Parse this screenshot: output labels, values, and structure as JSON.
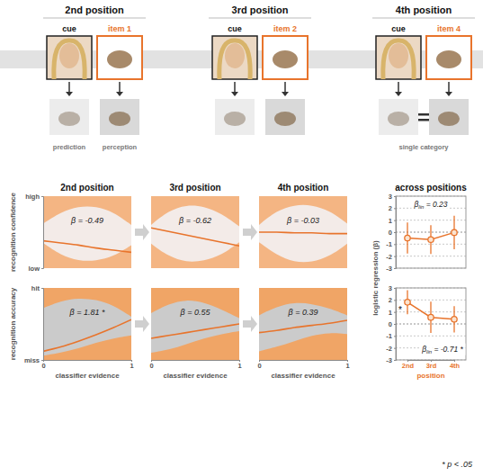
{
  "schematic": {
    "groups": [
      {
        "title": "2nd position",
        "cue": "cue",
        "item": "item 1",
        "outputs": [
          "prediction",
          "perception"
        ]
      },
      {
        "title": "3rd position",
        "cue": "cue",
        "item": "item 2",
        "outputs": []
      },
      {
        "title": "4th position",
        "cue": "cue",
        "item": "item 4",
        "outputs": [
          "single category"
        ]
      }
    ]
  },
  "footnote": "* p < .05",
  "chart_data": [
    {
      "type": "line",
      "title": "2nd position",
      "ylabel": "recognition confidence",
      "annotation": "β = -0.49",
      "color": "#e8742c",
      "xlim": [
        0,
        1
      ],
      "ylim": [
        0,
        1
      ],
      "yticks": [
        {
          "value": 0,
          "label": "low"
        },
        {
          "value": 1,
          "label": "high"
        }
      ],
      "tick_labels": "y",
      "x": [
        0,
        0.2,
        0.4,
        0.6,
        0.8,
        1
      ],
      "fit": [
        0.38,
        0.35,
        0.32,
        0.28,
        0.25,
        0.22
      ],
      "hit_edge": [
        0.62,
        0.78,
        0.86,
        0.86,
        0.78,
        0.6
      ],
      "miss_edge": [
        0.35,
        0.18,
        0.1,
        0.1,
        0.16,
        0.32
      ]
    },
    {
      "type": "line",
      "title": "3rd position",
      "annotation": "β = -0.62",
      "color": "#e8742c",
      "xlim": [
        0,
        1
      ],
      "ylim": [
        0,
        1
      ],
      "tick_labels": false,
      "x": [
        0,
        0.2,
        0.4,
        0.6,
        0.8,
        1
      ],
      "fit": [
        0.56,
        0.51,
        0.46,
        0.41,
        0.36,
        0.31
      ],
      "hit_edge": [
        0.6,
        0.8,
        0.88,
        0.86,
        0.76,
        0.58
      ],
      "miss_edge": [
        0.34,
        0.16,
        0.08,
        0.1,
        0.18,
        0.36
      ]
    },
    {
      "type": "line",
      "title": "4th position",
      "annotation": "β = -0.03",
      "color": "#e8742c",
      "xlim": [
        0,
        1
      ],
      "ylim": [
        0,
        1
      ],
      "tick_labels": false,
      "x": [
        0,
        0.2,
        0.4,
        0.6,
        0.8,
        1
      ],
      "fit": [
        0.5,
        0.5,
        0.49,
        0.49,
        0.48,
        0.48
      ],
      "hit_edge": [
        0.6,
        0.8,
        0.88,
        0.88,
        0.8,
        0.62
      ],
      "miss_edge": [
        0.36,
        0.18,
        0.08,
        0.08,
        0.16,
        0.34
      ]
    },
    {
      "type": "line",
      "ylabel": "recognition accuracy",
      "xlabel": "classifier evidence",
      "annotation": "β = 1.81 *",
      "color": "#e8742c",
      "xlim": [
        0,
        1
      ],
      "ylim": [
        0,
        1
      ],
      "xticks": [
        0,
        1
      ],
      "yticks": [
        {
          "value": 0,
          "label": "miss"
        },
        {
          "value": 1,
          "label": "hit"
        }
      ],
      "tick_labels": true,
      "x": [
        0,
        0.2,
        0.4,
        0.6,
        0.8,
        1
      ],
      "fit": [
        0.12,
        0.18,
        0.26,
        0.35,
        0.45,
        0.56
      ],
      "hit_edge": [
        0.72,
        0.82,
        0.86,
        0.84,
        0.76,
        0.6
      ],
      "miss_edge": [
        0.06,
        0.1,
        0.16,
        0.24,
        0.3,
        0.34
      ]
    },
    {
      "type": "line",
      "xlabel": "classifier evidence",
      "annotation": "β = 0.55",
      "color": "#e8742c",
      "xlim": [
        0,
        1
      ],
      "ylim": [
        0,
        1
      ],
      "xticks": [
        0,
        1
      ],
      "tick_labels": "x",
      "x": [
        0,
        0.2,
        0.4,
        0.6,
        0.8,
        1
      ],
      "fit": [
        0.3,
        0.34,
        0.38,
        0.42,
        0.46,
        0.5
      ],
      "hit_edge": [
        0.65,
        0.78,
        0.84,
        0.8,
        0.7,
        0.58
      ],
      "miss_edge": [
        0.1,
        0.14,
        0.22,
        0.3,
        0.36,
        0.4
      ]
    },
    {
      "type": "line",
      "xlabel": "classifier evidence",
      "annotation": "β = 0.39",
      "color": "#e8742c",
      "xlim": [
        0,
        1
      ],
      "ylim": [
        0,
        1
      ],
      "xticks": [
        0,
        1
      ],
      "tick_labels": "x",
      "x": [
        0,
        0.2,
        0.4,
        0.6,
        0.8,
        1
      ],
      "fit": [
        0.38,
        0.41,
        0.45,
        0.48,
        0.51,
        0.55
      ],
      "hit_edge": [
        0.62,
        0.74,
        0.8,
        0.78,
        0.72,
        0.62
      ],
      "miss_edge": [
        0.12,
        0.18,
        0.26,
        0.34,
        0.38,
        0.36
      ]
    },
    {
      "type": "scatter",
      "title": "across positions",
      "ylabel": "logistic regression (β)",
      "annotation": [
        "β",
        "lin",
        " = 0.23"
      ],
      "color": "#e8742c",
      "grid": true,
      "tick_labels": "y",
      "categories": [
        "2nd",
        "3rd",
        "4th"
      ],
      "values": [
        -0.49,
        -0.62,
        -0.03
      ],
      "errors": [
        1.3,
        1.2,
        1.4
      ],
      "ylim": [
        -3,
        3
      ],
      "yticks": [
        -3,
        -2,
        -1,
        0,
        1,
        2,
        3
      ]
    },
    {
      "type": "scatter",
      "xlabel": "position",
      "annotation": [
        "β",
        "lin",
        " = -0.71 *"
      ],
      "color": "#e8742c",
      "grid": true,
      "tick_labels": true,
      "categories": [
        "2nd",
        "3rd",
        "4th"
      ],
      "values": [
        1.81,
        0.55,
        0.39
      ],
      "errors": [
        1.0,
        1.3,
        1.1
      ],
      "point_labels": [
        "*",
        null,
        null
      ],
      "ylim": [
        -3,
        3
      ],
      "yticks": [
        -3,
        -2,
        -1,
        0,
        1,
        2,
        3
      ]
    }
  ]
}
